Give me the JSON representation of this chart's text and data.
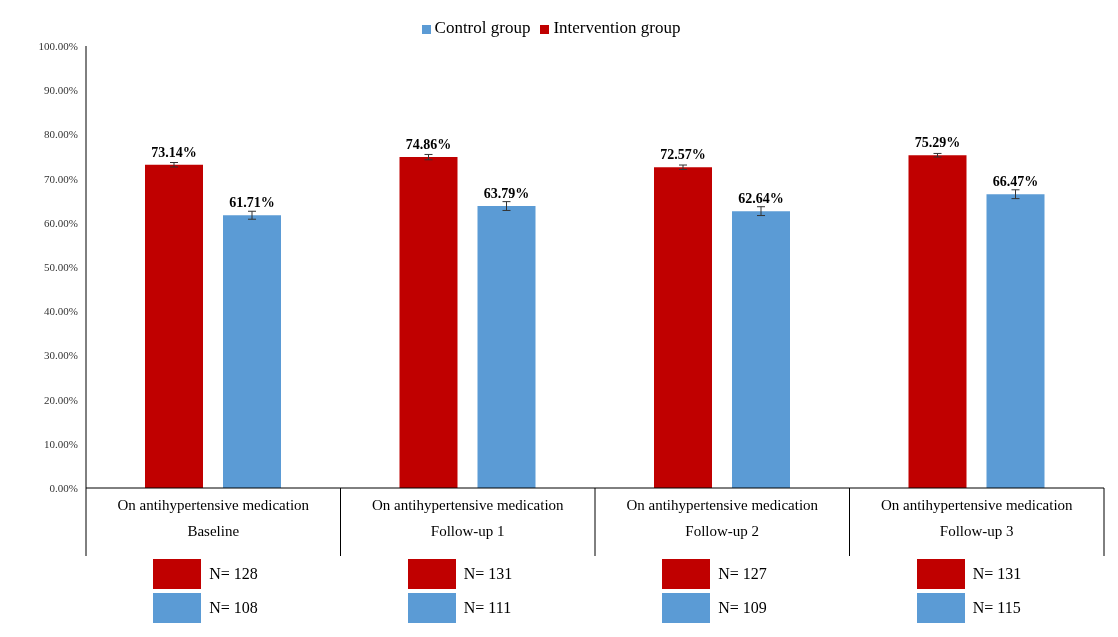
{
  "chart_data": {
    "type": "bar",
    "categories": [
      "On antihypertensive medication\nBaseline",
      "On antihypertensive medication\nFollow-up 1",
      "On antihypertensive medication\nFollow-up 2",
      "On antihypertensive medication\nFollow-up 3"
    ],
    "series": [
      {
        "name": "Intervention group",
        "color": "#c00000",
        "values": [
          73.14,
          74.86,
          72.57,
          75.29
        ],
        "errors": [
          0.5,
          0.6,
          0.5,
          0.4
        ],
        "value_labels": [
          "73.14%",
          "74.86%",
          "72.57%",
          "75.29%"
        ]
      },
      {
        "name": "Control group",
        "color": "#5b9bd5",
        "values": [
          61.71,
          63.79,
          62.64,
          66.47
        ],
        "errors": [
          0.9,
          1,
          1,
          1
        ],
        "value_labels": [
          "61.71%",
          "63.79%",
          "62.64%",
          "66.47%"
        ]
      }
    ],
    "ylim": [
      0,
      100
    ],
    "yticks": [
      {
        "value": 0,
        "label": "0.00%"
      },
      {
        "value": 10,
        "label": "10.00%"
      },
      {
        "value": 20,
        "label": "20.00%"
      },
      {
        "value": 30,
        "label": "30.00%"
      },
      {
        "value": 40,
        "label": "40.00%"
      },
      {
        "value": 50,
        "label": "50.00%"
      },
      {
        "value": 60,
        "label": "60.00%"
      },
      {
        "value": 70,
        "label": "70.00%"
      },
      {
        "value": 80,
        "label": "80.00%"
      },
      {
        "value": 90,
        "label": "90.00%"
      },
      {
        "value": 100,
        "label": "100.00%"
      }
    ],
    "annotations": [
      "N= 128",
      "N= 108",
      "N= 131",
      "N= 111",
      "N= 127",
      "N= 109",
      "N= 131",
      "N= 115"
    ],
    "grid": false,
    "legend": "top"
  }
}
